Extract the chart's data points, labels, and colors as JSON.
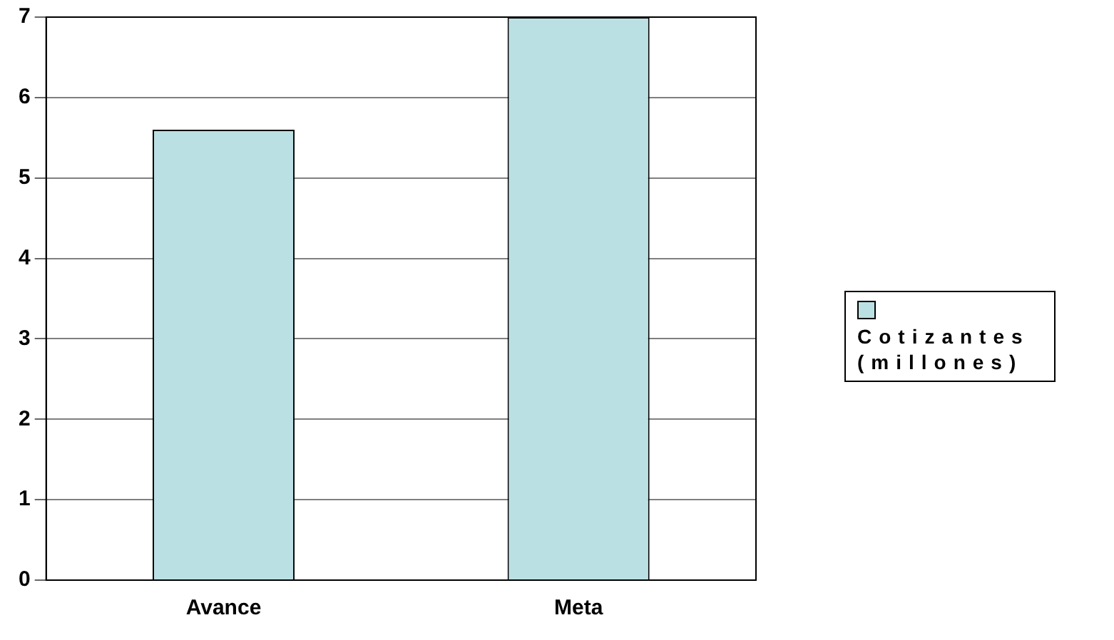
{
  "chart_data": {
    "type": "bar",
    "categories": [
      "Avance",
      "Meta"
    ],
    "series": [
      {
        "name": "Cotizantes (millones)",
        "color": "#bbe0e3",
        "values": [
          5.6,
          7.0
        ]
      }
    ],
    "ylim": [
      0,
      7
    ],
    "yticks": [
      0,
      1,
      2,
      3,
      4,
      5,
      6,
      7
    ],
    "grid": "y",
    "legend": "right"
  }
}
